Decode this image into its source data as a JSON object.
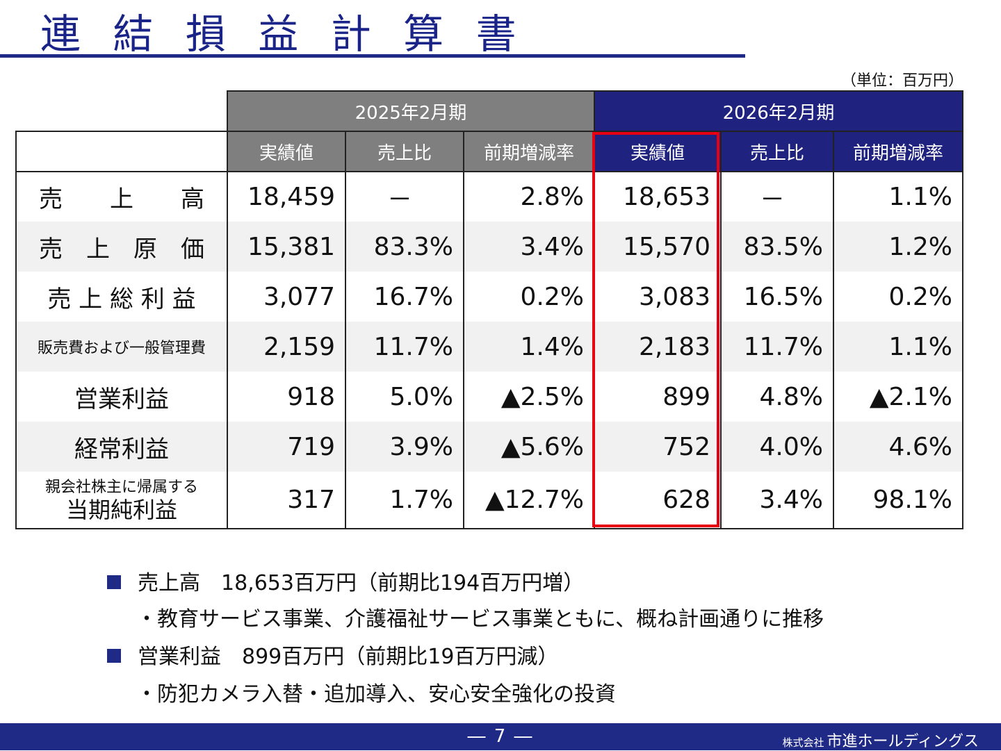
{
  "page": {
    "title": "連 結 損 益 計 算 書",
    "unit_note": "（単位：百万円）",
    "page_number": "― 7 ―",
    "company_prefix": "株式会社",
    "company_name": "市進ホールディングス"
  },
  "table": {
    "period_headers": [
      "2025年2月期",
      "2026年2月期"
    ],
    "column_headers": [
      "実績値",
      "売上比",
      "前期増減率",
      "実績値",
      "売上比",
      "前期増減率"
    ],
    "rows": [
      {
        "label": "売　　上　　高",
        "label_style": "normal",
        "values": [
          "18,459",
          "－",
          "2.8%",
          "18,653",
          "－",
          "1.1%"
        ]
      },
      {
        "label": "売　上　原　価",
        "label_style": "normal",
        "values": [
          "15,381",
          "83.3%",
          "3.4%",
          "15,570",
          "83.5%",
          "1.2%"
        ]
      },
      {
        "label": "売 上 総 利 益",
        "label_style": "normal",
        "values": [
          "3,077",
          "16.7%",
          "0.2%",
          "3,083",
          "16.5%",
          "0.2%"
        ]
      },
      {
        "label": "販売費および一般管理費",
        "label_style": "small",
        "values": [
          "2,159",
          "11.7%",
          "1.4%",
          "2,183",
          "11.7%",
          "1.1%"
        ]
      },
      {
        "label": "営業利益",
        "label_style": "normal",
        "values": [
          "918",
          "5.0%",
          "▲2.5%",
          "899",
          "4.8%",
          "▲2.1%"
        ]
      },
      {
        "label": "経常利益",
        "label_style": "normal",
        "values": [
          "719",
          "3.9%",
          "▲5.6%",
          "752",
          "4.0%",
          "4.6%"
        ]
      },
      {
        "label_top": "親会社株主に帰属する",
        "label": "当期純利益",
        "label_style": "two-line",
        "values": [
          "317",
          "1.7%",
          "▲12.7%",
          "628",
          "3.4%",
          "98.1%"
        ]
      }
    ]
  },
  "notes": [
    {
      "type": "bullet",
      "text": "売上高　18,653百万円（前期比194百万円増）"
    },
    {
      "type": "sub",
      "text": "・教育サービス事業、介護福祉サービス事業ともに、概ね計画通りに推移"
    },
    {
      "type": "bullet",
      "text": "営業利益　899百万円（前期比19百万円減）"
    },
    {
      "type": "sub",
      "text": "・防犯カメラ入替・追加導入、安心安全強化の投資"
    }
  ],
  "colors": {
    "navy": "#1f2a86",
    "gray_header": "#7f7f7f",
    "highlight_red": "#e60012"
  }
}
